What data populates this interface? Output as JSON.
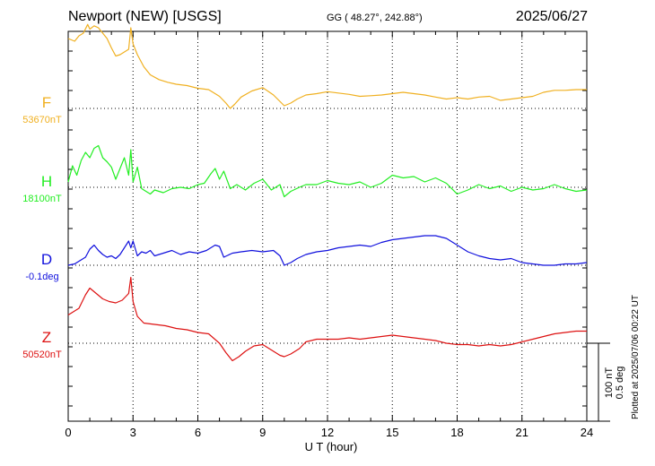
{
  "header": {
    "title": "Newport (NEW)  [USGS]",
    "coords": "GG ( 48.27°, 242.88°)",
    "date": "2025/06/27"
  },
  "footer_note": "Plotted at 2025/07/06 00:22 UT",
  "chart_data": {
    "type": "line",
    "xlabel": "U T (hour)",
    "xlim": [
      0,
      24
    ],
    "xticks": [
      0,
      3,
      6,
      9,
      12,
      15,
      18,
      21,
      24
    ],
    "scale_bar": {
      "line1": "100 nT",
      "line2": "0.5 deg"
    },
    "grid": true,
    "series": [
      {
        "name": "F",
        "baseline_label": "53670nT",
        "color": "#f0b020",
        "x": [
          0,
          0.3,
          0.5,
          0.7,
          0.9,
          1.0,
          1.2,
          1.4,
          1.6,
          1.8,
          2.0,
          2.2,
          2.4,
          2.6,
          2.8,
          2.9,
          3.0,
          3.2,
          3.5,
          3.8,
          4.2,
          4.6,
          5.0,
          5.5,
          6.0,
          6.5,
          7.0,
          7.3,
          7.5,
          7.7,
          8.0,
          8.5,
          9.0,
          9.5,
          10.0,
          10.3,
          10.6,
          11.0,
          11.5,
          12.0,
          12.5,
          13.0,
          13.5,
          14.0,
          14.5,
          15.0,
          15.5,
          16.0,
          16.5,
          17.0,
          17.5,
          18.0,
          18.5,
          19.0,
          19.5,
          20.0,
          20.5,
          21.0,
          21.5,
          22.0,
          22.5,
          23.0,
          23.5,
          24.0
        ],
        "y": [
          104,
          100,
          108,
          112,
          125,
          118,
          123,
          120,
          112,
          104,
          90,
          78,
          80,
          84,
          88,
          120,
          96,
          80,
          62,
          50,
          43,
          39,
          36,
          34,
          30,
          28,
          18,
          8,
          0,
          6,
          17,
          26,
          31,
          20,
          4,
          8,
          14,
          20,
          22,
          25,
          23,
          21,
          18,
          19,
          20,
          22,
          24,
          22,
          20,
          17,
          14,
          16,
          14,
          17,
          18,
          12,
          14,
          16,
          18,
          24,
          27,
          27,
          28,
          28
        ]
      },
      {
        "name": "H",
        "baseline_label": "18100nT",
        "color": "#22ee22",
        "x": [
          0,
          0.2,
          0.4,
          0.6,
          0.8,
          1.0,
          1.2,
          1.4,
          1.6,
          1.8,
          2.0,
          2.2,
          2.4,
          2.6,
          2.8,
          2.9,
          3.0,
          3.2,
          3.4,
          3.6,
          3.8,
          4.0,
          4.4,
          4.8,
          5.2,
          5.6,
          6.0,
          6.3,
          6.6,
          6.8,
          7.0,
          7.2,
          7.5,
          7.8,
          8.2,
          8.6,
          9.0,
          9.4,
          9.8,
          10.0,
          10.3,
          10.7,
          11.0,
          11.5,
          12.0,
          12.5,
          13.0,
          13.5,
          14.0,
          14.5,
          15.0,
          15.5,
          16.0,
          16.5,
          17.0,
          17.5,
          18.0,
          18.5,
          19.0,
          19.5,
          20.0,
          20.5,
          21.0,
          21.5,
          22.0,
          22.5,
          23.0,
          23.5,
          24.0
        ],
        "y": [
          8,
          32,
          18,
          40,
          52,
          44,
          58,
          62,
          44,
          38,
          30,
          12,
          28,
          44,
          18,
          56,
          8,
          30,
          -2,
          -6,
          -10,
          -4,
          -8,
          -2,
          0,
          -2,
          4,
          6,
          20,
          28,
          12,
          24,
          -2,
          4,
          -4,
          6,
          12,
          -4,
          4,
          -14,
          -6,
          0,
          4,
          4,
          10,
          6,
          4,
          8,
          0,
          6,
          18,
          14,
          16,
          8,
          14,
          6,
          -10,
          -4,
          4,
          -2,
          2,
          -6,
          0,
          -4,
          -2,
          4,
          -2,
          -6,
          -4
        ]
      },
      {
        "name": "D",
        "baseline_label": "-0.1deg",
        "color": "#1010dd",
        "x": [
          0,
          0.3,
          0.5,
          0.8,
          1.0,
          1.2,
          1.4,
          1.6,
          1.8,
          2.0,
          2.2,
          2.4,
          2.6,
          2.8,
          2.9,
          3.0,
          3.2,
          3.4,
          3.6,
          3.8,
          4.0,
          4.4,
          4.8,
          5.2,
          5.6,
          6.0,
          6.4,
          6.8,
          7.0,
          7.2,
          7.6,
          8.0,
          8.5,
          9.0,
          9.5,
          9.8,
          10.0,
          10.3,
          10.6,
          11.0,
          11.5,
          12.0,
          12.5,
          13.0,
          13.5,
          14.0,
          14.5,
          15.0,
          15.5,
          16.0,
          16.5,
          17.0,
          17.5,
          18.0,
          18.5,
          19.0,
          19.5,
          20.0,
          20.5,
          21.0,
          21.5,
          22.0,
          22.5,
          23.0,
          23.5,
          24.0
        ],
        "y": [
          0,
          2,
          6,
          12,
          24,
          30,
          22,
          16,
          12,
          14,
          10,
          16,
          26,
          36,
          26,
          36,
          14,
          20,
          18,
          22,
          14,
          18,
          22,
          16,
          20,
          18,
          22,
          30,
          28,
          12,
          18,
          20,
          22,
          20,
          22,
          14,
          0,
          4,
          10,
          16,
          20,
          22,
          26,
          28,
          30,
          28,
          34,
          38,
          40,
          42,
          44,
          44,
          40,
          30,
          20,
          14,
          10,
          8,
          10,
          4,
          2,
          0,
          0,
          2,
          2,
          4
        ]
      },
      {
        "name": "Z",
        "baseline_label": "50520nT",
        "color": "#dd1111",
        "x": [
          0,
          0.2,
          0.5,
          0.8,
          1.0,
          1.3,
          1.6,
          1.9,
          2.2,
          2.5,
          2.8,
          2.9,
          3.0,
          3.2,
          3.5,
          4.0,
          4.5,
          5.0,
          5.5,
          6.0,
          6.5,
          7.0,
          7.3,
          7.6,
          7.9,
          8.2,
          8.6,
          9.0,
          9.4,
          9.8,
          10.0,
          10.3,
          10.7,
          11.0,
          11.5,
          12.0,
          12.5,
          13.0,
          13.5,
          14.0,
          14.5,
          15.0,
          15.5,
          16.0,
          16.5,
          17.0,
          17.5,
          18.0,
          18.5,
          19.0,
          19.5,
          20.0,
          20.5,
          21.0,
          21.5,
          22.0,
          22.5,
          23.0,
          23.5,
          24.0
        ],
        "y": [
          42,
          46,
          52,
          72,
          82,
          74,
          66,
          62,
          60,
          64,
          74,
          98,
          62,
          40,
          30,
          28,
          26,
          22,
          20,
          16,
          14,
          0,
          -14,
          -26,
          -20,
          -12,
          -4,
          -2,
          -10,
          -18,
          -20,
          -16,
          -8,
          2,
          6,
          6,
          6,
          8,
          6,
          8,
          10,
          12,
          10,
          8,
          6,
          4,
          0,
          -2,
          -2,
          -4,
          -2,
          -4,
          -2,
          2,
          6,
          10,
          14,
          16,
          18,
          18
        ]
      }
    ]
  }
}
